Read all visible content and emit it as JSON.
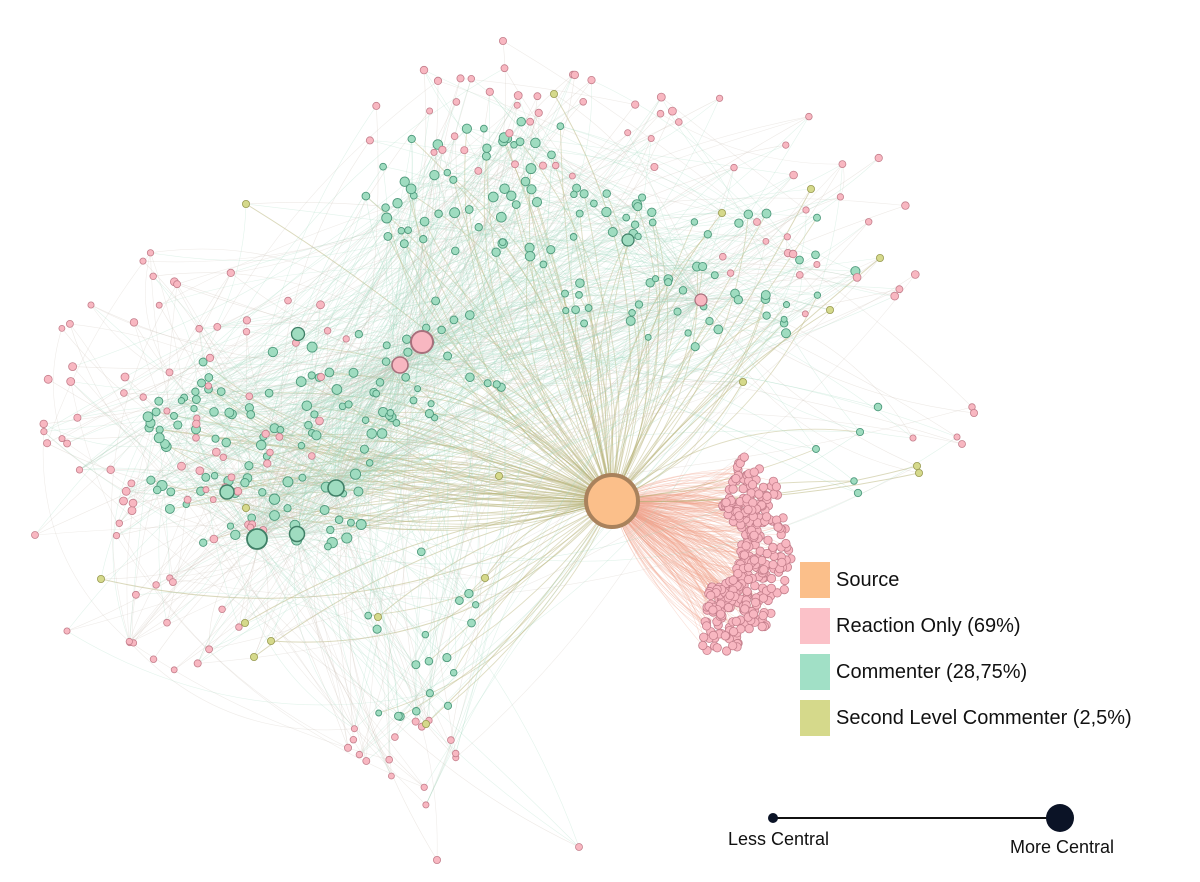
{
  "legend": {
    "items": [
      {
        "label": "Source",
        "color": "#fbbf8a"
      },
      {
        "label": "Reaction Only (69%)",
        "color": "#fbc1c8"
      },
      {
        "label": "Commenter (28,75%)",
        "color": "#a1e0c6"
      },
      {
        "label": "Second Level Commenter (2,5%)",
        "color": "#d5d98b"
      }
    ]
  },
  "centrality_scale": {
    "min_label": "Less Central",
    "max_label": "More Central",
    "line_color": "#111111",
    "dot_color": "#0b1326"
  },
  "network": {
    "colors": {
      "source": "#fbbf8a",
      "source_stroke": "#a9825c",
      "reaction": "#f8b7c1",
      "reaction_stroke": "#c47f8c",
      "commenter": "#9fdcc0",
      "commenter_stroke": "#4e9a7c",
      "second_level": "#d5d98b",
      "second_level_stroke": "#9a9c54",
      "edge_source": "#b8b47a",
      "edge_reaction": "#f2a48c",
      "edge_comment": "#9fd8bd",
      "edge_other": "#cbbfb5"
    }
  }
}
